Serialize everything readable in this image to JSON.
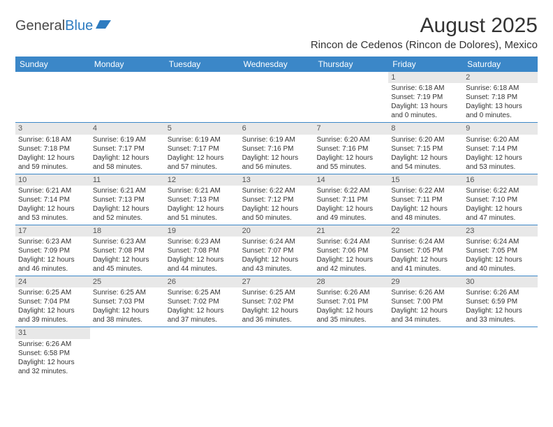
{
  "logo": {
    "text1": "General",
    "text2": "Blue"
  },
  "title": "August 2025",
  "location": "Rincon de Cedenos (Rincon de Dolores), Mexico",
  "colors": {
    "header_bg": "#3b87c8",
    "header_text": "#ffffff",
    "day_number_bg": "#e8e8e8",
    "row_border": "#3b87c8",
    "text": "#333333"
  },
  "day_names": [
    "Sunday",
    "Monday",
    "Tuesday",
    "Wednesday",
    "Thursday",
    "Friday",
    "Saturday"
  ],
  "weeks": [
    [
      null,
      null,
      null,
      null,
      null,
      {
        "n": "1",
        "sr": "Sunrise: 6:18 AM",
        "ss": "Sunset: 7:19 PM",
        "dl": "Daylight: 13 hours and 0 minutes."
      },
      {
        "n": "2",
        "sr": "Sunrise: 6:18 AM",
        "ss": "Sunset: 7:18 PM",
        "dl": "Daylight: 13 hours and 0 minutes."
      }
    ],
    [
      {
        "n": "3",
        "sr": "Sunrise: 6:18 AM",
        "ss": "Sunset: 7:18 PM",
        "dl": "Daylight: 12 hours and 59 minutes."
      },
      {
        "n": "4",
        "sr": "Sunrise: 6:19 AM",
        "ss": "Sunset: 7:17 PM",
        "dl": "Daylight: 12 hours and 58 minutes."
      },
      {
        "n": "5",
        "sr": "Sunrise: 6:19 AM",
        "ss": "Sunset: 7:17 PM",
        "dl": "Daylight: 12 hours and 57 minutes."
      },
      {
        "n": "6",
        "sr": "Sunrise: 6:19 AM",
        "ss": "Sunset: 7:16 PM",
        "dl": "Daylight: 12 hours and 56 minutes."
      },
      {
        "n": "7",
        "sr": "Sunrise: 6:20 AM",
        "ss": "Sunset: 7:16 PM",
        "dl": "Daylight: 12 hours and 55 minutes."
      },
      {
        "n": "8",
        "sr": "Sunrise: 6:20 AM",
        "ss": "Sunset: 7:15 PM",
        "dl": "Daylight: 12 hours and 54 minutes."
      },
      {
        "n": "9",
        "sr": "Sunrise: 6:20 AM",
        "ss": "Sunset: 7:14 PM",
        "dl": "Daylight: 12 hours and 53 minutes."
      }
    ],
    [
      {
        "n": "10",
        "sr": "Sunrise: 6:21 AM",
        "ss": "Sunset: 7:14 PM",
        "dl": "Daylight: 12 hours and 53 minutes."
      },
      {
        "n": "11",
        "sr": "Sunrise: 6:21 AM",
        "ss": "Sunset: 7:13 PM",
        "dl": "Daylight: 12 hours and 52 minutes."
      },
      {
        "n": "12",
        "sr": "Sunrise: 6:21 AM",
        "ss": "Sunset: 7:13 PM",
        "dl": "Daylight: 12 hours and 51 minutes."
      },
      {
        "n": "13",
        "sr": "Sunrise: 6:22 AM",
        "ss": "Sunset: 7:12 PM",
        "dl": "Daylight: 12 hours and 50 minutes."
      },
      {
        "n": "14",
        "sr": "Sunrise: 6:22 AM",
        "ss": "Sunset: 7:11 PM",
        "dl": "Daylight: 12 hours and 49 minutes."
      },
      {
        "n": "15",
        "sr": "Sunrise: 6:22 AM",
        "ss": "Sunset: 7:11 PM",
        "dl": "Daylight: 12 hours and 48 minutes."
      },
      {
        "n": "16",
        "sr": "Sunrise: 6:22 AM",
        "ss": "Sunset: 7:10 PM",
        "dl": "Daylight: 12 hours and 47 minutes."
      }
    ],
    [
      {
        "n": "17",
        "sr": "Sunrise: 6:23 AM",
        "ss": "Sunset: 7:09 PM",
        "dl": "Daylight: 12 hours and 46 minutes."
      },
      {
        "n": "18",
        "sr": "Sunrise: 6:23 AM",
        "ss": "Sunset: 7:08 PM",
        "dl": "Daylight: 12 hours and 45 minutes."
      },
      {
        "n": "19",
        "sr": "Sunrise: 6:23 AM",
        "ss": "Sunset: 7:08 PM",
        "dl": "Daylight: 12 hours and 44 minutes."
      },
      {
        "n": "20",
        "sr": "Sunrise: 6:24 AM",
        "ss": "Sunset: 7:07 PM",
        "dl": "Daylight: 12 hours and 43 minutes."
      },
      {
        "n": "21",
        "sr": "Sunrise: 6:24 AM",
        "ss": "Sunset: 7:06 PM",
        "dl": "Daylight: 12 hours and 42 minutes."
      },
      {
        "n": "22",
        "sr": "Sunrise: 6:24 AM",
        "ss": "Sunset: 7:05 PM",
        "dl": "Daylight: 12 hours and 41 minutes."
      },
      {
        "n": "23",
        "sr": "Sunrise: 6:24 AM",
        "ss": "Sunset: 7:05 PM",
        "dl": "Daylight: 12 hours and 40 minutes."
      }
    ],
    [
      {
        "n": "24",
        "sr": "Sunrise: 6:25 AM",
        "ss": "Sunset: 7:04 PM",
        "dl": "Daylight: 12 hours and 39 minutes."
      },
      {
        "n": "25",
        "sr": "Sunrise: 6:25 AM",
        "ss": "Sunset: 7:03 PM",
        "dl": "Daylight: 12 hours and 38 minutes."
      },
      {
        "n": "26",
        "sr": "Sunrise: 6:25 AM",
        "ss": "Sunset: 7:02 PM",
        "dl": "Daylight: 12 hours and 37 minutes."
      },
      {
        "n": "27",
        "sr": "Sunrise: 6:25 AM",
        "ss": "Sunset: 7:02 PM",
        "dl": "Daylight: 12 hours and 36 minutes."
      },
      {
        "n": "28",
        "sr": "Sunrise: 6:26 AM",
        "ss": "Sunset: 7:01 PM",
        "dl": "Daylight: 12 hours and 35 minutes."
      },
      {
        "n": "29",
        "sr": "Sunrise: 6:26 AM",
        "ss": "Sunset: 7:00 PM",
        "dl": "Daylight: 12 hours and 34 minutes."
      },
      {
        "n": "30",
        "sr": "Sunrise: 6:26 AM",
        "ss": "Sunset: 6:59 PM",
        "dl": "Daylight: 12 hours and 33 minutes."
      }
    ],
    [
      {
        "n": "31",
        "sr": "Sunrise: 6:26 AM",
        "ss": "Sunset: 6:58 PM",
        "dl": "Daylight: 12 hours and 32 minutes."
      },
      null,
      null,
      null,
      null,
      null,
      null
    ]
  ]
}
